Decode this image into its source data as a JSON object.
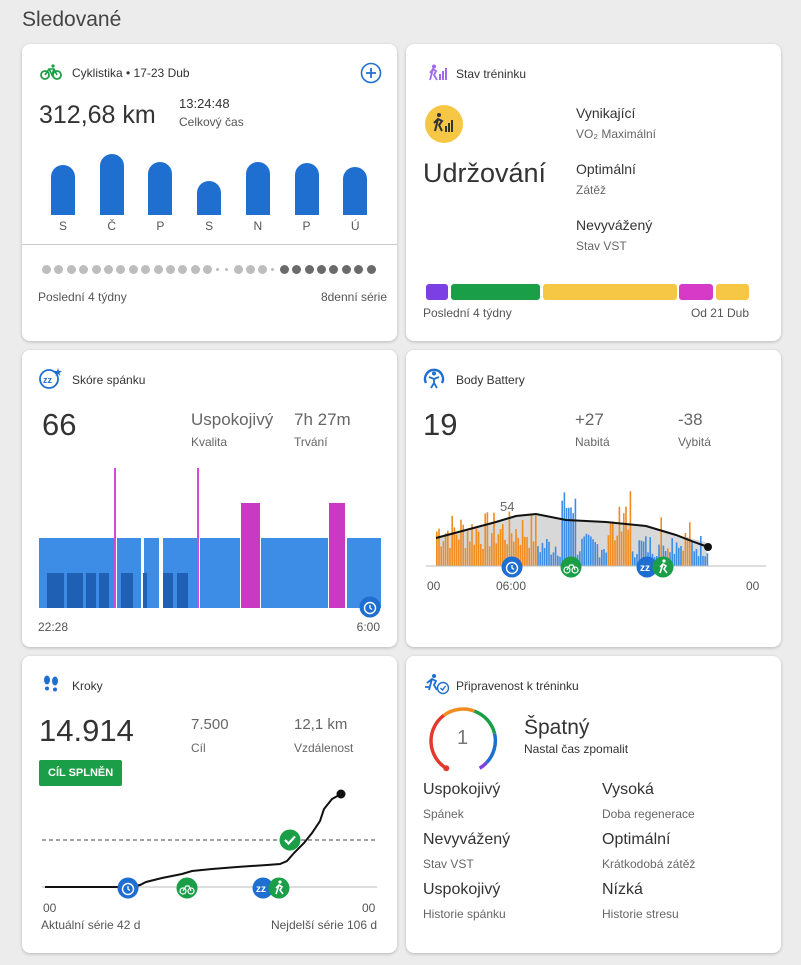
{
  "page": {
    "title": "Sledované"
  },
  "cycling": {
    "title": "Cyklistika • 17-23 Dub",
    "distance": "312,68 km",
    "time": "13:24:48",
    "time_label": "Celkový čas",
    "days": [
      "S",
      "Č",
      "P",
      "S",
      "N",
      "P",
      "Ú"
    ],
    "bar_values": [
      0.73,
      0.9,
      0.78,
      0.5,
      0.78,
      0.76,
      0.71
    ],
    "footer_left": "Poslední 4 týdny",
    "footer_right": "8denní série",
    "accent": "#1f6fd1"
  },
  "training_status": {
    "title": "Stav tréninku",
    "status": "Udržování",
    "items": [
      {
        "value": "Vynikající",
        "label": "VO₂ Maximální"
      },
      {
        "value": "Optimální",
        "label": "Zátěž"
      },
      {
        "value": "Nevyvážený",
        "label": "Stav VST"
      }
    ],
    "footer_left": "Poslední 4 týdny",
    "footer_right": "Od 21 Dub",
    "segment_colors": [
      "#7b3fe4",
      "#1a9e47",
      "#f6c744",
      "#d63ac6",
      "#f6c744"
    ]
  },
  "sleep": {
    "title": "Skóre spánku",
    "score": "66",
    "quality_value": "Uspokojivý",
    "quality_label": "Kvalita",
    "duration_value": "7h 27m",
    "duration_label": "Trvání",
    "start_time": "22:28",
    "end_time": "6:00",
    "colors": {
      "deep": "#1f5fb4",
      "light": "#3d8de6",
      "rem": "#c93ac3",
      "awake": "#d24bd8"
    }
  },
  "body_battery": {
    "title": "Body Battery",
    "value": "19",
    "charged_value": "+27",
    "charged_label": "Nabitá",
    "drained_value": "-38",
    "drained_label": "Vybitá",
    "peak_label": "54",
    "x_labels": [
      "00",
      "06:00",
      "00"
    ]
  },
  "steps": {
    "title": "Kroky",
    "count": "14.914",
    "goal_value": "7.500",
    "goal_label": "Cíl",
    "distance_value": "12,1 km",
    "distance_label": "Vzdálenost",
    "badge": "CÍL SPLNĚN",
    "x_labels": [
      "00",
      "00"
    ],
    "footer_left": "Aktuální série 42 d",
    "footer_right": "Nejdelší série 106 d"
  },
  "readiness": {
    "title": "Připravenost k tréninku",
    "score": "1",
    "status": "Špatný",
    "message": "Nastal čas zpomalit",
    "items": [
      {
        "value": "Uspokojivý",
        "label": "Spánek"
      },
      {
        "value": "Vysoká",
        "label": "Doba regenerace"
      },
      {
        "value": "Nevyvážený",
        "label": "Stav VST"
      },
      {
        "value": "Optimální",
        "label": "Krátkodobá zátěž"
      },
      {
        "value": "Uspokojivý",
        "label": "Historie spánku"
      },
      {
        "value": "Nízká",
        "label": "Historie stresu"
      }
    ]
  }
}
